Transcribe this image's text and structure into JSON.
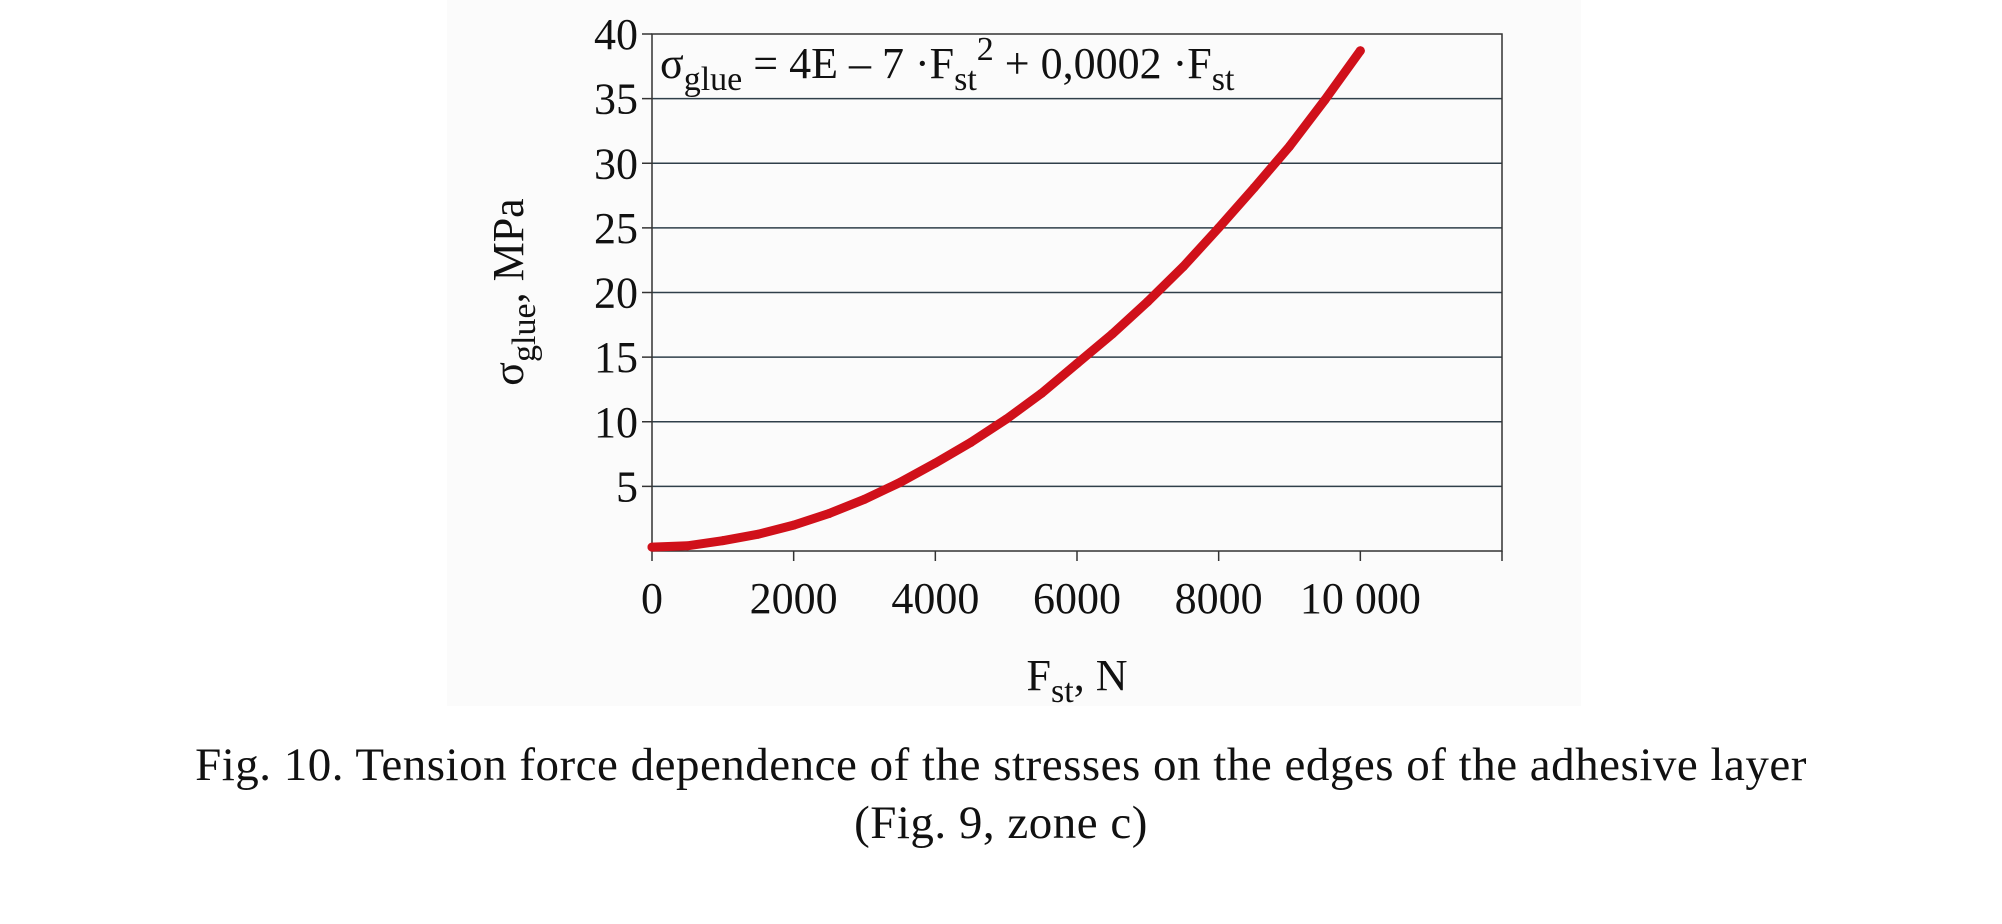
{
  "figure": {
    "caption_line1": "Fig. 10. Tension force dependence of the stresses on the edges of the adhesive layer",
    "caption_line2": "(Fig. 9, zone c)"
  },
  "chart_data": {
    "type": "line",
    "xlabel": {
      "base": "F",
      "sub": "st",
      "suffix": ", N"
    },
    "ylabel": {
      "base": "σ",
      "sub": "glue",
      "suffix": ", MPa"
    },
    "xlim": [
      0,
      12000
    ],
    "ylim": [
      0,
      40
    ],
    "x_ticks": [
      0,
      2000,
      4000,
      6000,
      8000,
      10000
    ],
    "x_tick_labels": [
      "0",
      "2000",
      "4000",
      "6000",
      "8000",
      "10 000"
    ],
    "y_ticks": [
      5,
      10,
      15,
      20,
      25,
      30,
      35,
      40
    ],
    "y_tick_labels": [
      "5",
      "10",
      "15",
      "20",
      "25",
      "30",
      "35",
      "40"
    ],
    "grid": {
      "horizontal": true,
      "vertical": false
    },
    "annotation": {
      "sigma": "σ",
      "glue": "glue",
      "part1": " = 4E – 7 ·F",
      "st1": "st",
      "exp": "2",
      "part2": " + 0,0002 ·F",
      "st2": "st"
    },
    "series": [
      {
        "color": "#d0101a",
        "x": [
          0,
          500,
          1000,
          1500,
          2000,
          2500,
          3000,
          3500,
          4000,
          4500,
          5000,
          5500,
          6000,
          6500,
          7000,
          7500,
          8000,
          8500,
          9000,
          9500,
          10000
        ],
        "y": [
          0.3,
          0.4,
          0.8,
          1.3,
          2.0,
          2.9,
          4.0,
          5.3,
          6.8,
          8.4,
          10.2,
          12.2,
          14.5,
          16.8,
          19.3,
          22.0,
          25.0,
          28.1,
          31.3,
          34.9,
          38.7
        ]
      }
    ]
  }
}
